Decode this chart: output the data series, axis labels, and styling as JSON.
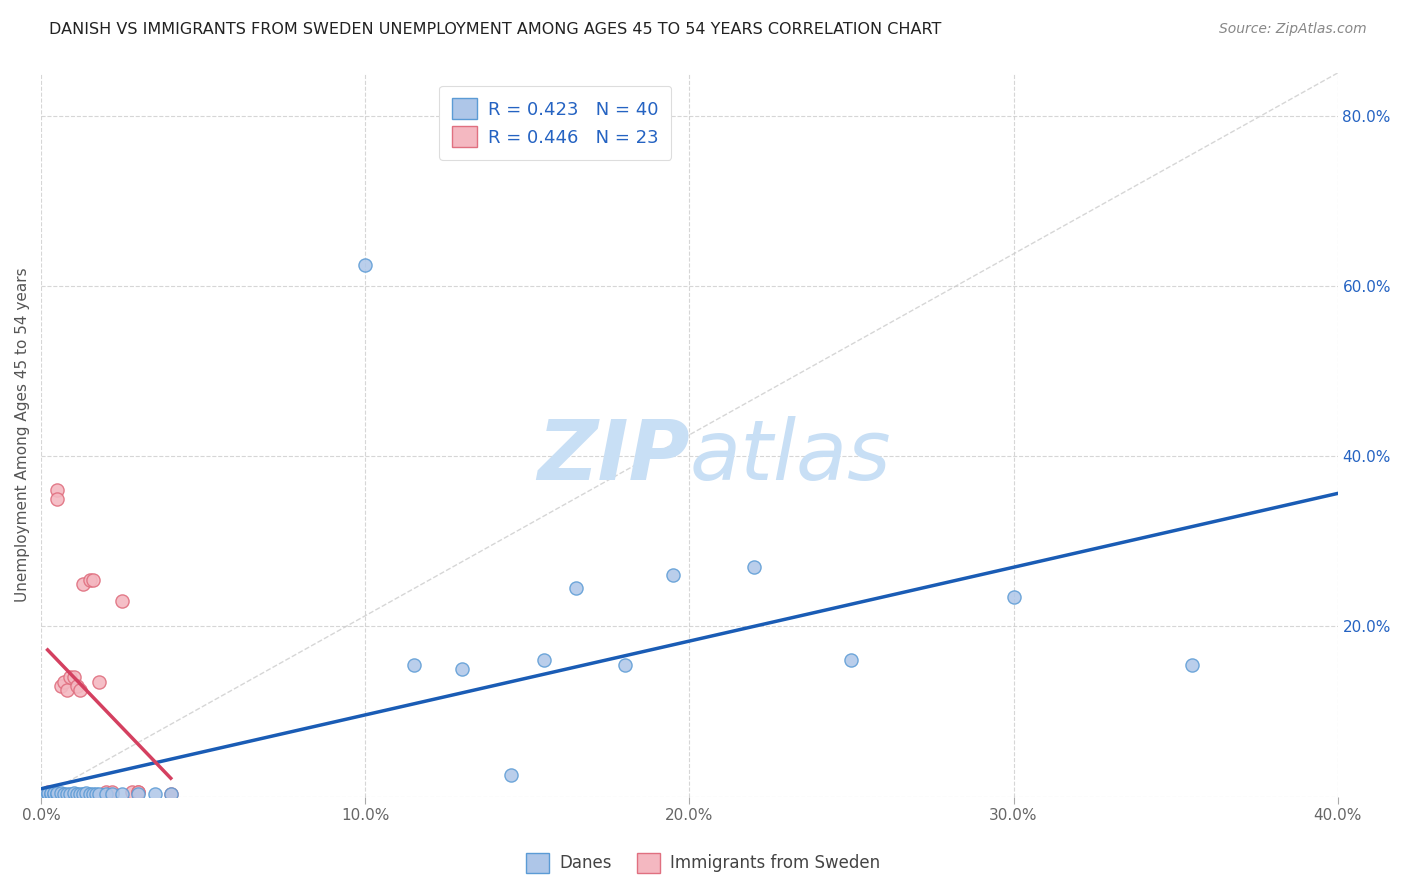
{
  "title": "DANISH VS IMMIGRANTS FROM SWEDEN UNEMPLOYMENT AMONG AGES 45 TO 54 YEARS CORRELATION CHART",
  "source": "Source: ZipAtlas.com",
  "ylabel": "Unemployment Among Ages 45 to 54 years",
  "xlim": [
    0.0,
    0.4
  ],
  "ylim": [
    0.0,
    0.85
  ],
  "xticks": [
    0.0,
    0.1,
    0.2,
    0.3,
    0.4
  ],
  "yticks": [
    0.0,
    0.2,
    0.4,
    0.6,
    0.8
  ],
  "xtick_labels": [
    "0.0%",
    "10.0%",
    "20.0%",
    "30.0%",
    "40.0%"
  ],
  "ytick_labels_right": [
    "",
    "20.0%",
    "40.0%",
    "60.0%",
    "80.0%"
  ],
  "danes_x": [
    0.001,
    0.002,
    0.002,
    0.003,
    0.003,
    0.004,
    0.004,
    0.005,
    0.005,
    0.006,
    0.007,
    0.008,
    0.009,
    0.01,
    0.011,
    0.012,
    0.013,
    0.014,
    0.015,
    0.016,
    0.017,
    0.018,
    0.02,
    0.022,
    0.025,
    0.03,
    0.035,
    0.04,
    0.1,
    0.115,
    0.13,
    0.145,
    0.155,
    0.165,
    0.18,
    0.195,
    0.22,
    0.25,
    0.3,
    0.355
  ],
  "danes_y": [
    0.003,
    0.003,
    0.004,
    0.003,
    0.004,
    0.003,
    0.004,
    0.003,
    0.004,
    0.004,
    0.003,
    0.003,
    0.003,
    0.004,
    0.003,
    0.003,
    0.003,
    0.004,
    0.003,
    0.003,
    0.003,
    0.003,
    0.003,
    0.003,
    0.003,
    0.003,
    0.003,
    0.003,
    0.625,
    0.155,
    0.15,
    0.025,
    0.16,
    0.245,
    0.155,
    0.26,
    0.27,
    0.16,
    0.235,
    0.155
  ],
  "immigrants_x": [
    0.002,
    0.003,
    0.004,
    0.005,
    0.005,
    0.006,
    0.007,
    0.008,
    0.009,
    0.01,
    0.011,
    0.012,
    0.013,
    0.015,
    0.016,
    0.018,
    0.02,
    0.022,
    0.025,
    0.028,
    0.03,
    0.03,
    0.04
  ],
  "immigrants_y": [
    0.005,
    0.005,
    0.005,
    0.36,
    0.35,
    0.13,
    0.135,
    0.125,
    0.14,
    0.14,
    0.13,
    0.125,
    0.25,
    0.255,
    0.255,
    0.135,
    0.005,
    0.005,
    0.23,
    0.005,
    0.005,
    0.005,
    0.003
  ],
  "danes_color": "#aec6e8",
  "danes_edge_color": "#5b9bd5",
  "immigrants_color": "#f4b8c1",
  "immigrants_edge_color": "#e07080",
  "danes_line_color": "#1a5cb5",
  "immigrants_line_color": "#d44060",
  "diagonal_color": "#cccccc",
  "watermark_zip_color": "#c8dff5",
  "watermark_atlas_color": "#c8dff5",
  "marker_size": 90,
  "background_color": "#ffffff",
  "grid_color": "#cccccc",
  "legend_r_color": "#2563c2",
  "legend_n_color": "#e05050"
}
